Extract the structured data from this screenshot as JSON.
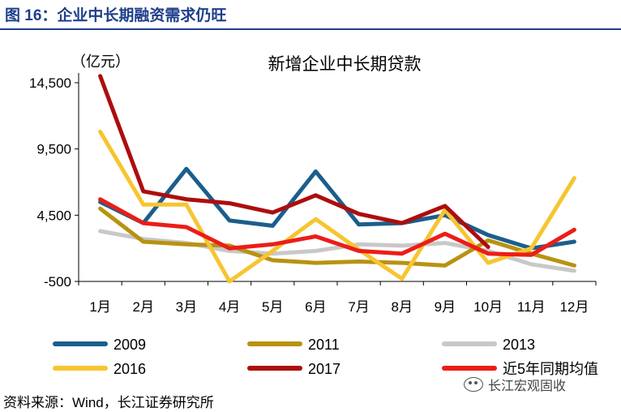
{
  "header": {
    "figure_title": "图 16：企业中长期融资需求仍旺"
  },
  "footer": {
    "source": "资料来源：Wind，长江证券研究所",
    "watermark": "长江宏观固收"
  },
  "chart_data": {
    "type": "line",
    "title": "新增企业中长期贷款",
    "ylabel": "（亿元）",
    "xlabel": "",
    "ylim": [
      -500,
      16000
    ],
    "yticks": [
      -500,
      4500,
      9500,
      14500
    ],
    "ytick_labels": [
      "-500",
      "4,500",
      "9,500",
      "14,500"
    ],
    "categories": [
      "1月",
      "2月",
      "3月",
      "4月",
      "5月",
      "6月",
      "7月",
      "8月",
      "9月",
      "10月",
      "11月",
      "12月"
    ],
    "series": [
      {
        "name": "2009",
        "color": "#1b5e8c",
        "values": [
          5500,
          3900,
          8000,
          4100,
          3700,
          7800,
          3800,
          3900,
          4500,
          3000,
          2000,
          2500
        ]
      },
      {
        "name": "2011",
        "color": "#b89211",
        "values": [
          5000,
          2500,
          2300,
          2200,
          1100,
          900,
          1000,
          900,
          700,
          2600,
          1600,
          700
        ]
      },
      {
        "name": "2013",
        "color": "#c8c8c8",
        "values": [
          3300,
          2700,
          2400,
          1800,
          1600,
          1800,
          2300,
          2200,
          2400,
          1800,
          800,
          300
        ]
      },
      {
        "name": "2016",
        "color": "#f7c531",
        "values": [
          10800,
          5300,
          5300,
          -500,
          1800,
          4200,
          1900,
          -300,
          4900,
          900,
          2000,
          7300
        ]
      },
      {
        "name": "2017",
        "color": "#ad0d0d",
        "values": [
          15000,
          6300,
          5700,
          5400,
          4700,
          6000,
          4600,
          3900,
          5200,
          2100,
          null,
          null
        ]
      },
      {
        "name": "近5年同期均值",
        "color": "#ec1d18",
        "values": [
          5700,
          3900,
          3600,
          2000,
          2300,
          2900,
          1800,
          1600,
          3100,
          1600,
          1500,
          3400
        ]
      }
    ],
    "legend": {
      "placement": "bottom",
      "columns": 3
    }
  }
}
